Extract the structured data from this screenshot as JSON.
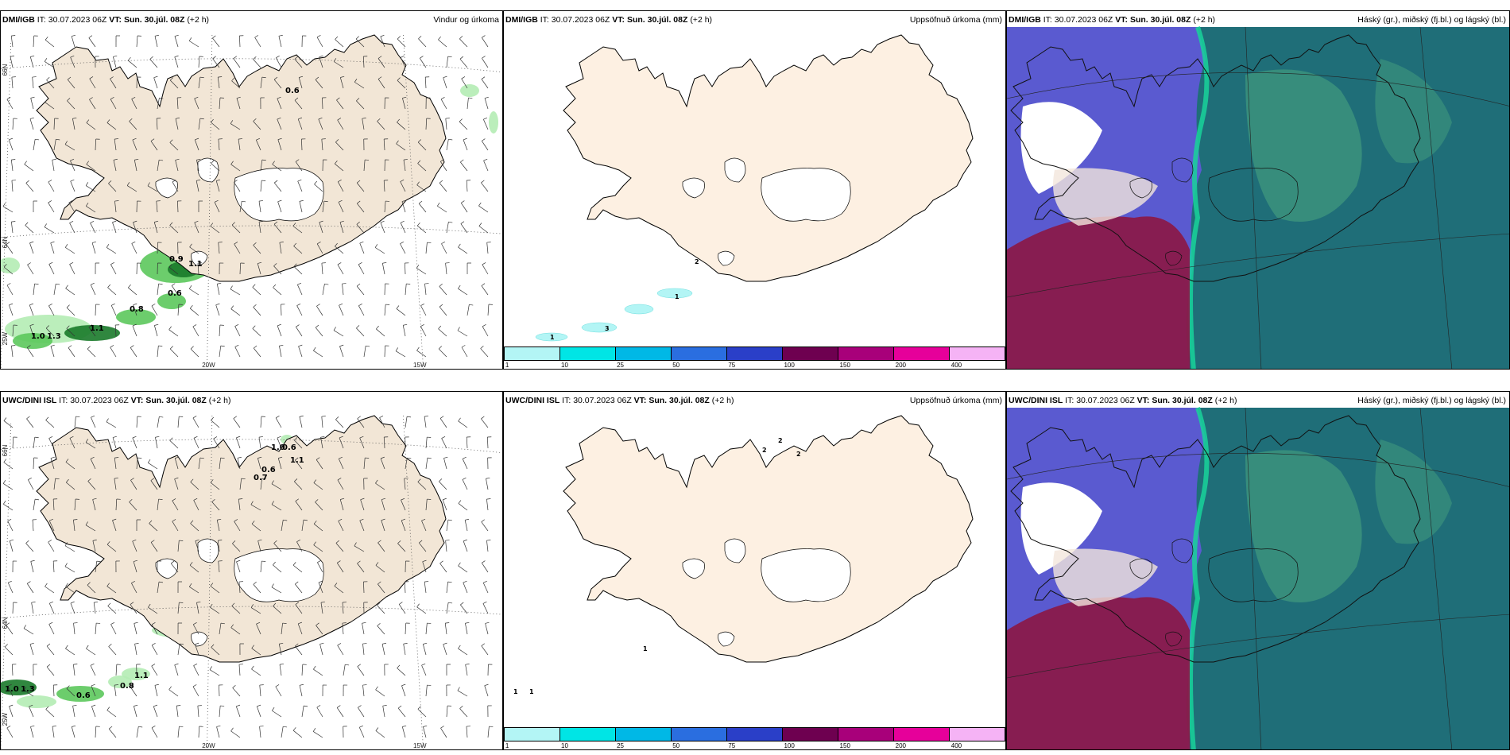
{
  "panels": [
    {
      "model": "DMI/IGB",
      "it_label": "IT:",
      "it": "30.07.2023 06Z",
      "vt_label": "VT:",
      "vt": "Sun. 30.júl. 08Z",
      "offset": "(+2 h)",
      "product": "Vindur og úrkoma",
      "type": "wind"
    },
    {
      "model": "DMI/IGB",
      "it_label": "IT:",
      "it": "30.07.2023 06Z",
      "vt_label": "VT:",
      "vt": "Sun. 30.júl. 08Z",
      "offset": "(+2 h)",
      "product": "Uppsöfnuð úrkoma (mm)",
      "type": "accum"
    },
    {
      "model": "DMI/IGB",
      "it_label": "IT:",
      "it": "30.07.2023 06Z",
      "vt_label": "VT:",
      "vt": "Sun. 30.júl. 08Z",
      "offset": "(+2 h)",
      "product": "Háský (gr.), miðský (fj.bl.) og lágský (bl.)",
      "type": "cloud"
    },
    {
      "model": "UWC/DINI ISL",
      "it_label": "IT:",
      "it": "30.07.2023 06Z",
      "vt_label": "VT:",
      "vt": "Sun. 30.júl. 08Z",
      "offset": "(+2 h)",
      "product": "",
      "type": "wind"
    },
    {
      "model": "UWC/DINI ISL",
      "it_label": "IT:",
      "it": "30.07.2023 06Z",
      "vt_label": "VT:",
      "vt": "Sun. 30.júl. 08Z",
      "offset": "(+2 h)",
      "product": "Uppsöfnuð úrkoma (mm)",
      "type": "accum"
    },
    {
      "model": "UWC/DINI ISL",
      "it_label": "IT:",
      "it": "30.07.2023 06Z",
      "vt_label": "VT:",
      "vt": "Sun. 30.júl. 08Z",
      "offset": "(+2 h)",
      "product": "Háský (gr.), miðský (fj.bl.) og lágský (bl.)",
      "type": "cloud"
    }
  ],
  "axis_labels": {
    "lat66": "66N",
    "lat64": "64N",
    "lon25": "25W",
    "lon20": "20W",
    "lon15": "15W"
  },
  "wind_values_top": [
    "0.6",
    "0.9",
    "1.1",
    "0.6",
    "0.8",
    "1.1",
    "1.0",
    "1.3"
  ],
  "wind_values_bottom": [
    "1.0",
    "0.6",
    "1.1",
    "0.6",
    "0.7",
    "1.1",
    "0.8",
    "1.0",
    "1.3",
    "0.6"
  ],
  "accum_values_top": [
    "2",
    "1",
    "3",
    "1"
  ],
  "accum_values_bottom": [
    "2",
    "2",
    "2",
    "1",
    "1",
    "1"
  ],
  "legend": {
    "ticks": [
      "1",
      "10",
      "25",
      "50",
      "75",
      "100",
      "150",
      "200",
      "400"
    ],
    "colors": [
      "#b3f5f5",
      "#00e5e5",
      "#00b8e6",
      "#2a6ee0",
      "#2a3fc8",
      "#6e0050",
      "#a8007a",
      "#e6009a",
      "#f5b3f5"
    ]
  },
  "colors": {
    "land_wind": "#f2e6d6",
    "land_accum": "#fdf0e2",
    "precip_light": "#b4ecb4",
    "precip_mid": "#5cc85c",
    "precip_dark": "#1a7a2a",
    "cloud_high": "#5a5ad0",
    "cloud_mid": "#1f6e78",
    "cloud_low": "#8a1a4a",
    "cloud_edge": "#19d49a"
  }
}
